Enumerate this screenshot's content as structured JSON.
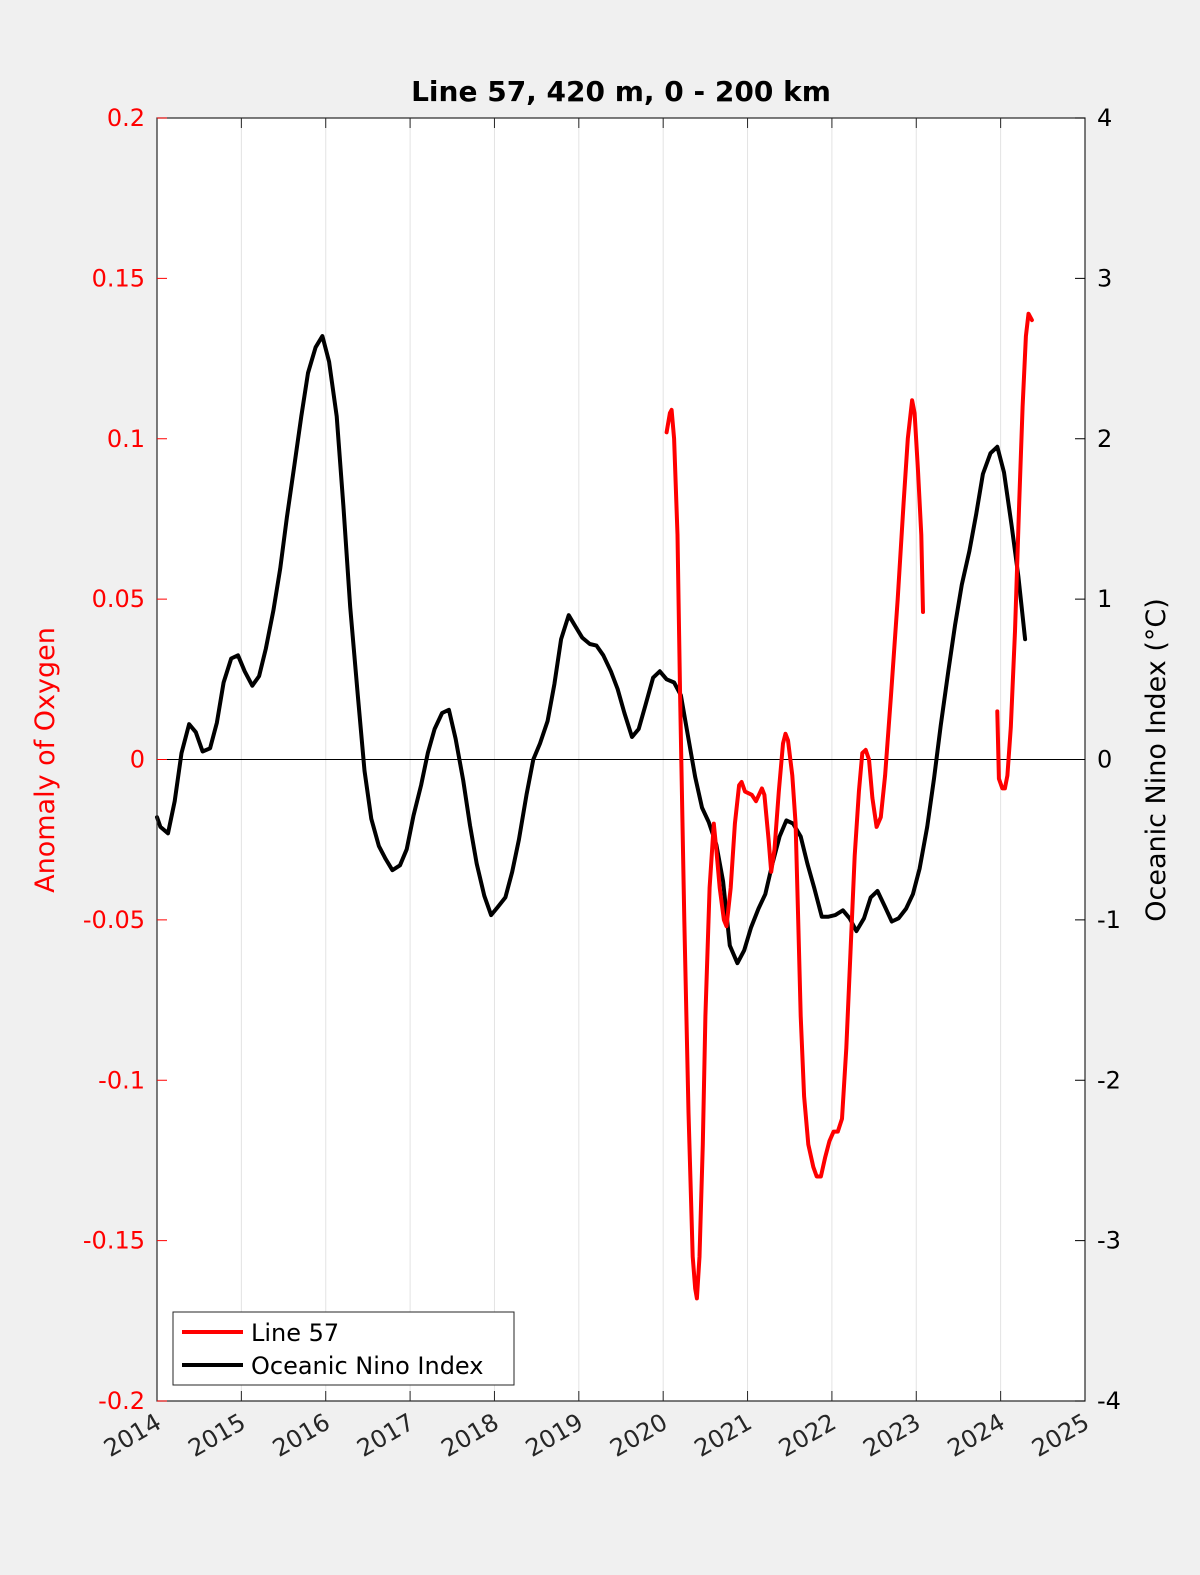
{
  "chart_data": {
    "type": "line",
    "title": "Line 57, 420 m, 0 - 200 km",
    "xlabel": "",
    "ylabel": "Anomaly of Oxygen",
    "ylabel_right": "Oceanic Nino Index (°C)",
    "xlim": [
      2014,
      2025
    ],
    "ylim": [
      -0.2,
      0.2
    ],
    "ylim_right": [
      -4,
      4
    ],
    "x_ticks": [
      "2014",
      "2015",
      "2016",
      "2017",
      "2018",
      "2019",
      "2020",
      "2021",
      "2022",
      "2023",
      "2024",
      "2025"
    ],
    "y_ticks": [
      "-0.2",
      "-0.15",
      "-0.1",
      "-0.05",
      "0",
      "0.05",
      "0.1",
      "0.15",
      "0.2"
    ],
    "y_ticks_right": [
      "-4",
      "-3",
      "-2",
      "-1",
      "0",
      "1",
      "2",
      "3",
      "4"
    ],
    "grid": "vertical",
    "legend_position": "bottom-left",
    "colors": {
      "line57": "#ff0000",
      "oni": "#000000",
      "left_axis": "#ff0000",
      "right_axis": "#000000"
    },
    "series": [
      {
        "name": "Line 57",
        "axis": "left",
        "color": "#ff0000",
        "segments": [
          [
            [
              2020.04,
              0.102
            ],
            [
              2020.08,
              0.108
            ],
            [
              2020.1,
              0.109
            ],
            [
              2020.13,
              0.1
            ],
            [
              2020.17,
              0.07
            ],
            [
              2020.2,
              0.02
            ],
            [
              2020.25,
              -0.05
            ],
            [
              2020.3,
              -0.11
            ],
            [
              2020.35,
              -0.155
            ],
            [
              2020.38,
              -0.165
            ],
            [
              2020.4,
              -0.168
            ],
            [
              2020.43,
              -0.155
            ],
            [
              2020.47,
              -0.12
            ],
            [
              2020.5,
              -0.08
            ],
            [
              2020.55,
              -0.04
            ],
            [
              2020.6,
              -0.02
            ],
            [
              2020.63,
              -0.028
            ],
            [
              2020.67,
              -0.04
            ],
            [
              2020.72,
              -0.05
            ],
            [
              2020.75,
              -0.052
            ],
            [
              2020.8,
              -0.04
            ],
            [
              2020.85,
              -0.02
            ],
            [
              2020.9,
              -0.008
            ],
            [
              2020.93,
              -0.007
            ],
            [
              2020.97,
              -0.01
            ],
            [
              2021.05,
              -0.011
            ],
            [
              2021.1,
              -0.013
            ],
            [
              2021.17,
              -0.009
            ],
            [
              2021.2,
              -0.011
            ],
            [
              2021.25,
              -0.025
            ],
            [
              2021.28,
              -0.035
            ],
            [
              2021.32,
              -0.028
            ],
            [
              2021.37,
              -0.01
            ],
            [
              2021.42,
              0.005
            ],
            [
              2021.45,
              0.008
            ],
            [
              2021.48,
              0.006
            ],
            [
              2021.53,
              -0.005
            ],
            [
              2021.57,
              -0.02
            ],
            [
              2021.6,
              -0.05
            ],
            [
              2021.63,
              -0.08
            ],
            [
              2021.67,
              -0.105
            ],
            [
              2021.72,
              -0.12
            ],
            [
              2021.78,
              -0.127
            ],
            [
              2021.82,
              -0.13
            ],
            [
              2021.87,
              -0.13
            ],
            [
              2021.92,
              -0.124
            ],
            [
              2021.97,
              -0.119
            ],
            [
              2022.02,
              -0.116
            ],
            [
              2022.07,
              -0.116
            ],
            [
              2022.12,
              -0.112
            ],
            [
              2022.17,
              -0.09
            ],
            [
              2022.22,
              -0.06
            ],
            [
              2022.27,
              -0.03
            ],
            [
              2022.32,
              -0.01
            ],
            [
              2022.36,
              0.002
            ],
            [
              2022.4,
              0.003
            ],
            [
              2022.44,
              0.0
            ],
            [
              2022.48,
              -0.012
            ],
            [
              2022.53,
              -0.021
            ],
            [
              2022.58,
              -0.018
            ],
            [
              2022.63,
              -0.005
            ],
            [
              2022.7,
              0.02
            ],
            [
              2022.78,
              0.05
            ],
            [
              2022.85,
              0.08
            ],
            [
              2022.9,
              0.1
            ],
            [
              2022.95,
              0.112
            ],
            [
              2022.98,
              0.108
            ],
            [
              2023.02,
              0.09
            ],
            [
              2023.06,
              0.07
            ],
            [
              2023.08,
              0.046
            ]
          ],
          [
            [
              2023.96,
              0.015
            ],
            [
              2023.98,
              -0.006
            ],
            [
              2024.02,
              -0.009
            ],
            [
              2024.05,
              -0.009
            ],
            [
              2024.08,
              -0.005
            ],
            [
              2024.12,
              0.01
            ],
            [
              2024.17,
              0.04
            ],
            [
              2024.22,
              0.08
            ],
            [
              2024.26,
              0.11
            ],
            [
              2024.3,
              0.132
            ],
            [
              2024.33,
              0.139
            ],
            [
              2024.37,
              0.137
            ]
          ]
        ]
      },
      {
        "name": "Oceanic Nino Index",
        "axis": "right",
        "color": "#000000",
        "points": [
          [
            2014.0,
            -0.36
          ],
          [
            2014.04,
            -0.42
          ],
          [
            2014.13,
            -0.46
          ],
          [
            2014.21,
            -0.26
          ],
          [
            2014.29,
            0.04
          ],
          [
            2014.38,
            0.22
          ],
          [
            2014.46,
            0.17
          ],
          [
            2014.54,
            0.05
          ],
          [
            2014.63,
            0.07
          ],
          [
            2014.71,
            0.23
          ],
          [
            2014.79,
            0.48
          ],
          [
            2014.88,
            0.63
          ],
          [
            2014.96,
            0.65
          ],
          [
            2015.04,
            0.55
          ],
          [
            2015.13,
            0.46
          ],
          [
            2015.21,
            0.52
          ],
          [
            2015.29,
            0.69
          ],
          [
            2015.38,
            0.93
          ],
          [
            2015.46,
            1.19
          ],
          [
            2015.54,
            1.51
          ],
          [
            2015.63,
            1.84
          ],
          [
            2015.71,
            2.14
          ],
          [
            2015.79,
            2.41
          ],
          [
            2015.88,
            2.57
          ],
          [
            2015.96,
            2.64
          ],
          [
            2016.04,
            2.48
          ],
          [
            2016.13,
            2.14
          ],
          [
            2016.21,
            1.58
          ],
          [
            2016.29,
            0.95
          ],
          [
            2016.38,
            0.4
          ],
          [
            2016.46,
            -0.07
          ],
          [
            2016.54,
            -0.37
          ],
          [
            2016.63,
            -0.54
          ],
          [
            2016.71,
            -0.62
          ],
          [
            2016.79,
            -0.69
          ],
          [
            2016.88,
            -0.66
          ],
          [
            2016.96,
            -0.56
          ],
          [
            2017.04,
            -0.35
          ],
          [
            2017.13,
            -0.16
          ],
          [
            2017.21,
            0.04
          ],
          [
            2017.29,
            0.19
          ],
          [
            2017.38,
            0.29
          ],
          [
            2017.46,
            0.31
          ],
          [
            2017.54,
            0.13
          ],
          [
            2017.63,
            -0.13
          ],
          [
            2017.71,
            -0.41
          ],
          [
            2017.79,
            -0.65
          ],
          [
            2017.88,
            -0.85
          ],
          [
            2017.96,
            -0.97
          ],
          [
            2018.04,
            -0.92
          ],
          [
            2018.13,
            -0.86
          ],
          [
            2018.21,
            -0.7
          ],
          [
            2018.29,
            -0.5
          ],
          [
            2018.38,
            -0.22
          ],
          [
            2018.46,
            0.0
          ],
          [
            2018.54,
            0.1
          ],
          [
            2018.63,
            0.24
          ],
          [
            2018.71,
            0.47
          ],
          [
            2018.79,
            0.75
          ],
          [
            2018.88,
            0.9
          ],
          [
            2018.96,
            0.83
          ],
          [
            2019.04,
            0.76
          ],
          [
            2019.13,
            0.72
          ],
          [
            2019.21,
            0.71
          ],
          [
            2019.29,
            0.65
          ],
          [
            2019.38,
            0.55
          ],
          [
            2019.46,
            0.44
          ],
          [
            2019.54,
            0.29
          ],
          [
            2019.63,
            0.14
          ],
          [
            2019.71,
            0.19
          ],
          [
            2019.79,
            0.34
          ],
          [
            2019.88,
            0.51
          ],
          [
            2019.96,
            0.55
          ],
          [
            2020.04,
            0.5
          ],
          [
            2020.13,
            0.48
          ],
          [
            2020.21,
            0.4
          ],
          [
            2020.29,
            0.16
          ],
          [
            2020.38,
            -0.11
          ],
          [
            2020.46,
            -0.3
          ],
          [
            2020.54,
            -0.39
          ],
          [
            2020.63,
            -0.53
          ],
          [
            2020.71,
            -0.76
          ],
          [
            2020.79,
            -1.16
          ],
          [
            2020.88,
            -1.27
          ],
          [
            2020.96,
            -1.19
          ],
          [
            2021.04,
            -1.05
          ],
          [
            2021.13,
            -0.93
          ],
          [
            2021.21,
            -0.84
          ],
          [
            2021.29,
            -0.66
          ],
          [
            2021.38,
            -0.48
          ],
          [
            2021.46,
            -0.38
          ],
          [
            2021.54,
            -0.4
          ],
          [
            2021.63,
            -0.48
          ],
          [
            2021.71,
            -0.65
          ],
          [
            2021.79,
            -0.8
          ],
          [
            2021.88,
            -0.98
          ],
          [
            2021.96,
            -0.98
          ],
          [
            2022.04,
            -0.97
          ],
          [
            2022.13,
            -0.94
          ],
          [
            2022.21,
            -0.99
          ],
          [
            2022.29,
            -1.07
          ],
          [
            2022.38,
            -0.99
          ],
          [
            2022.46,
            -0.86
          ],
          [
            2022.54,
            -0.82
          ],
          [
            2022.63,
            -0.92
          ],
          [
            2022.71,
            -1.01
          ],
          [
            2022.79,
            -0.99
          ],
          [
            2022.88,
            -0.93
          ],
          [
            2022.96,
            -0.84
          ],
          [
            2023.04,
            -0.68
          ],
          [
            2023.13,
            -0.42
          ],
          [
            2023.21,
            -0.12
          ],
          [
            2023.29,
            0.21
          ],
          [
            2023.38,
            0.55
          ],
          [
            2023.46,
            0.84
          ],
          [
            2023.54,
            1.09
          ],
          [
            2023.63,
            1.3
          ],
          [
            2023.71,
            1.53
          ],
          [
            2023.79,
            1.78
          ],
          [
            2023.88,
            1.91
          ],
          [
            2023.96,
            1.95
          ],
          [
            2024.04,
            1.79
          ],
          [
            2024.13,
            1.46
          ],
          [
            2024.21,
            1.14
          ],
          [
            2024.29,
            0.75
          ]
        ]
      }
    ]
  }
}
